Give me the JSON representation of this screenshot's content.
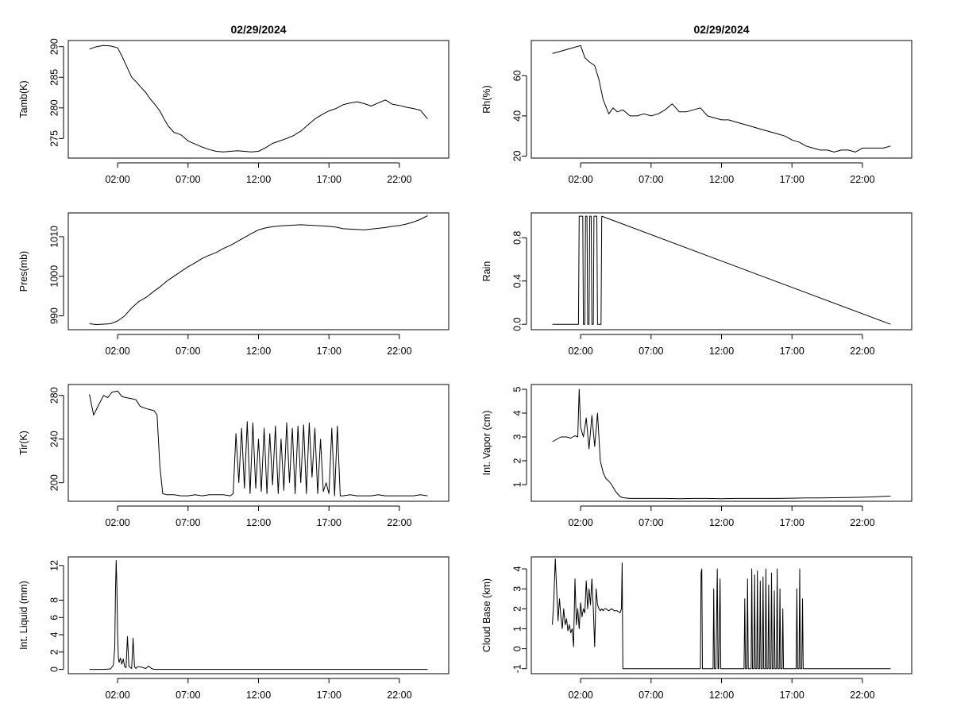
{
  "chart_data": [
    {
      "type": "line",
      "title": "02/29/2024",
      "ylabel": "Tamb(K)",
      "xlim": [
        -1.5,
        25.5
      ],
      "ylim": [
        271.8,
        291.0
      ],
      "yticks": [
        275,
        280,
        285,
        290
      ],
      "xticks": [
        2,
        7,
        12,
        17,
        22
      ],
      "xtick_labels": [
        "02:00",
        "07:00",
        "12:00",
        "17:00",
        "22:00"
      ],
      "series": [
        {
          "x": [
            0,
            0.5,
            1,
            1.5,
            2,
            2.3,
            2.6,
            3,
            3.3,
            3.6,
            4,
            4.3,
            4.6,
            5,
            5.3,
            5.6,
            6,
            6.5,
            7,
            7.5,
            8,
            8.5,
            9,
            9.5,
            10,
            10.5,
            11,
            11.5,
            12,
            12.5,
            13,
            13.5,
            14,
            14.5,
            15,
            15.5,
            16,
            16.5,
            17,
            17.5,
            18,
            18.5,
            19,
            19.5,
            20,
            20.5,
            21,
            21.5,
            22,
            22.5,
            23,
            23.5,
            24
          ],
          "y": [
            289.6,
            290.0,
            290.2,
            290.1,
            289.8,
            288.5,
            287.0,
            285.0,
            284.3,
            283.5,
            282.5,
            281.5,
            280.7,
            279.5,
            278.2,
            277.0,
            276.0,
            275.6,
            274.6,
            274.1,
            273.6,
            273.2,
            272.9,
            272.8,
            272.9,
            273.0,
            272.9,
            272.8,
            272.9,
            273.5,
            274.2,
            274.6,
            275.0,
            275.5,
            276.2,
            277.2,
            278.2,
            278.9,
            279.5,
            279.9,
            280.5,
            280.8,
            281.0,
            280.7,
            280.3,
            280.8,
            281.3,
            280.6,
            280.4,
            280.1,
            279.9,
            279.6,
            278.2
          ]
        }
      ]
    },
    {
      "type": "line",
      "title": "02/29/2024",
      "ylabel": "Rh(%)",
      "xlim": [
        -1.5,
        25.5
      ],
      "ylim": [
        19,
        77.5
      ],
      "yticks": [
        20,
        40,
        60
      ],
      "xticks": [
        2,
        7,
        12,
        17,
        22
      ],
      "xtick_labels": [
        "02:00",
        "07:00",
        "12:00",
        "17:00",
        "22:00"
      ],
      "series": [
        {
          "x": [
            0,
            0.5,
            1,
            1.5,
            2,
            2.3,
            2.6,
            3,
            3.3,
            3.6,
            4,
            4.3,
            4.6,
            5,
            5.5,
            6,
            6.5,
            7,
            7.5,
            8,
            8.5,
            9,
            9.5,
            10,
            10.5,
            11,
            11.5,
            12,
            12.5,
            13,
            13.5,
            14,
            14.5,
            15,
            15.5,
            16,
            16.5,
            17,
            17.5,
            18,
            18.5,
            19,
            19.5,
            20,
            20.5,
            21,
            21.5,
            22,
            22.5,
            23,
            23.5,
            24
          ],
          "y": [
            71,
            72,
            73,
            74,
            75,
            69,
            67,
            65,
            58,
            48,
            41,
            44,
            42,
            43,
            40,
            40,
            41,
            40,
            41,
            43,
            46,
            42,
            42,
            43,
            44,
            40,
            39,
            38,
            38,
            37,
            36,
            35,
            34,
            33,
            32,
            31,
            30,
            28,
            27,
            25,
            24,
            23,
            23,
            22,
            23,
            23,
            22,
            24,
            24,
            24,
            24,
            25
          ]
        }
      ]
    },
    {
      "type": "line",
      "title": "",
      "ylabel": "Pres(mb)",
      "xlim": [
        -1.5,
        25.5
      ],
      "ylim": [
        986.5,
        1016.0
      ],
      "yticks": [
        990,
        1000,
        1010
      ],
      "xticks": [
        2,
        7,
        12,
        17,
        22
      ],
      "xtick_labels": [
        "02:00",
        "07:00",
        "12:00",
        "17:00",
        "22:00"
      ],
      "series": [
        {
          "x": [
            0,
            0.5,
            1,
            1.5,
            2,
            2.5,
            3,
            3.5,
            4,
            4.5,
            5,
            5.5,
            6,
            6.5,
            7,
            7.5,
            8,
            8.5,
            9,
            9.5,
            10,
            10.5,
            11,
            11.5,
            12,
            12.5,
            13,
            13.5,
            14,
            14.5,
            15,
            15.5,
            16,
            16.5,
            17,
            17.5,
            18,
            18.5,
            19,
            19.5,
            20,
            20.5,
            21,
            21.5,
            22,
            22.5,
            23,
            23.5,
            24
          ],
          "y": [
            988.0,
            987.8,
            987.9,
            988.0,
            988.7,
            990.0,
            992.0,
            993.6,
            994.6,
            996.0,
            997.3,
            998.8,
            1000.0,
            1001.2,
            1002.4,
            1003.4,
            1004.5,
            1005.3,
            1006.0,
            1007.0,
            1007.8,
            1008.8,
            1009.8,
            1010.8,
            1011.7,
            1012.2,
            1012.5,
            1012.7,
            1012.8,
            1012.9,
            1013.0,
            1012.9,
            1012.8,
            1012.7,
            1012.6,
            1012.4,
            1012.0,
            1011.9,
            1011.8,
            1011.7,
            1011.9,
            1012.1,
            1012.3,
            1012.6,
            1012.8,
            1013.2,
            1013.7,
            1014.4,
            1015.3
          ]
        }
      ]
    },
    {
      "type": "line",
      "title": "",
      "ylabel": "Rain",
      "xlim": [
        -1.5,
        25.5
      ],
      "ylim": [
        -0.05,
        1.03
      ],
      "yticks": [
        0.0,
        0.4,
        0.8
      ],
      "xticks": [
        2,
        7,
        12,
        17,
        22
      ],
      "xtick_labels": [
        "02:00",
        "07:00",
        "12:00",
        "17:00",
        "22:00"
      ],
      "series": [
        {
          "x": [
            0,
            1.85,
            1.9,
            2.15,
            2.2,
            2.3,
            2.35,
            2.45,
            2.5,
            2.6,
            2.65,
            2.75,
            2.8,
            2.9,
            2.95,
            3.15,
            3.2,
            3.45,
            3.5,
            24
          ],
          "y": [
            0,
            0,
            1,
            1,
            0,
            0,
            1,
            1,
            0,
            0,
            1,
            1,
            0,
            0,
            1,
            1,
            0,
            0,
            1,
            0
          ]
        }
      ]
    },
    {
      "type": "line",
      "title": "",
      "ylabel": "Tir(K)",
      "xlim": [
        -1.5,
        25.5
      ],
      "ylim": [
        183,
        290
      ],
      "yticks": [
        200,
        240,
        280
      ],
      "xticks": [
        2,
        7,
        12,
        17,
        22
      ],
      "xtick_labels": [
        "02:00",
        "07:00",
        "12:00",
        "17:00",
        "22:00"
      ],
      "series": [
        {
          "x": [
            0,
            0.3,
            0.6,
            1,
            1.3,
            1.6,
            2,
            2.3,
            2.6,
            3,
            3.3,
            3.6,
            4,
            4.3,
            4.6,
            4.8,
            5.0,
            5.2,
            5.5,
            6,
            6.5,
            7,
            7.5,
            8,
            8.5,
            9,
            9.5,
            10,
            10.2,
            10.4,
            10.6,
            10.8,
            11.0,
            11.2,
            11.4,
            11.6,
            11.8,
            12.0,
            12.2,
            12.4,
            12.6,
            12.8,
            13.0,
            13.2,
            13.4,
            13.6,
            13.8,
            14.0,
            14.2,
            14.4,
            14.6,
            14.8,
            15.0,
            15.2,
            15.4,
            15.6,
            15.8,
            16.0,
            16.2,
            16.4,
            16.6,
            16.8,
            17.0,
            17.2,
            17.4,
            17.6,
            17.8,
            18.0,
            18.5,
            19,
            19.5,
            20,
            20.5,
            21,
            21.5,
            22,
            22.5,
            23,
            23.5,
            24
          ],
          "y": [
            281,
            262,
            270,
            280,
            278,
            283,
            284,
            279,
            278,
            277,
            276,
            270,
            268,
            267,
            266,
            262,
            215,
            190,
            189,
            189,
            188,
            188,
            189,
            188,
            189,
            189,
            189,
            188,
            190,
            245,
            200,
            250,
            195,
            256,
            190,
            255,
            195,
            240,
            192,
            250,
            190,
            245,
            198,
            252,
            190,
            240,
            193,
            255,
            200,
            250,
            190,
            252,
            200,
            253,
            190,
            255,
            205,
            250,
            190,
            240,
            192,
            200,
            190,
            250,
            188,
            252,
            188,
            188,
            189,
            188,
            188,
            188,
            189,
            188,
            188,
            188,
            188,
            188,
            189,
            188
          ]
        }
      ]
    },
    {
      "type": "line",
      "title": "",
      "ylabel": "Int. Vapor (cm)",
      "xlim": [
        -1.5,
        25.5
      ],
      "ylim": [
        0.3,
        5.2
      ],
      "yticks": [
        1,
        2,
        3,
        4,
        5
      ],
      "xticks": [
        2,
        7,
        12,
        17,
        22
      ],
      "xtick_labels": [
        "02:00",
        "07:00",
        "12:00",
        "17:00",
        "22:00"
      ],
      "series": [
        {
          "x": [
            0,
            0.3,
            0.6,
            1,
            1.3,
            1.6,
            1.8,
            1.9,
            2.0,
            2.2,
            2.4,
            2.6,
            2.8,
            3.0,
            3.2,
            3.4,
            3.6,
            3.8,
            4.0,
            4.2,
            4.5,
            4.8,
            5,
            5.5,
            6,
            7,
            8,
            9,
            10,
            11,
            12,
            13,
            14,
            15,
            16,
            17,
            18,
            19,
            20,
            21,
            22,
            23,
            24
          ],
          "y": [
            2.8,
            2.9,
            3.0,
            3.0,
            2.95,
            3.05,
            3.0,
            5.0,
            3.4,
            3.0,
            3.8,
            2.5,
            3.9,
            2.6,
            4.0,
            2.0,
            1.5,
            1.25,
            1.15,
            1.0,
            0.7,
            0.5,
            0.45,
            0.42,
            0.42,
            0.42,
            0.42,
            0.41,
            0.42,
            0.42,
            0.41,
            0.42,
            0.42,
            0.42,
            0.42,
            0.43,
            0.44,
            0.44,
            0.45,
            0.46,
            0.47,
            0.49,
            0.52
          ]
        }
      ]
    },
    {
      "type": "line",
      "title": "",
      "ylabel": "Int. Liquid (mm)",
      "xlim": [
        -1.5,
        25.5
      ],
      "ylim": [
        -0.5,
        13.0
      ],
      "yticks": [
        0,
        2,
        4,
        6,
        8,
        12
      ],
      "xticks": [
        2,
        7,
        12,
        17,
        22
      ],
      "xtick_labels": [
        "02:00",
        "07:00",
        "12:00",
        "17:00",
        "22:00"
      ],
      "series": [
        {
          "x": [
            0,
            1,
            1.5,
            1.7,
            1.8,
            1.85,
            1.9,
            1.95,
            2.0,
            2.05,
            2.1,
            2.2,
            2.3,
            2.4,
            2.5,
            2.6,
            2.7,
            2.8,
            2.9,
            3.0,
            3.1,
            3.2,
            3.3,
            3.4,
            3.6,
            3.8,
            4.0,
            4.2,
            4.4,
            4.6,
            5,
            24
          ],
          "y": [
            0,
            0,
            0.05,
            0.5,
            2.5,
            9.0,
            12.6,
            9.5,
            4.0,
            1.5,
            0.8,
            1.3,
            0.6,
            1.2,
            0.3,
            0.2,
            3.8,
            0.4,
            0.2,
            0.1,
            3.6,
            0.3,
            0.1,
            0.3,
            0.3,
            0.2,
            0.1,
            0.4,
            0.1,
            0,
            0,
            0
          ]
        }
      ]
    },
    {
      "type": "line",
      "title": "",
      "ylabel": "Cloud Base (km)",
      "xlim": [
        -1.5,
        25.5
      ],
      "ylim": [
        -1.25,
        4.6
      ],
      "yticks": [
        -1,
        0,
        1,
        2,
        3,
        4
      ],
      "xticks": [
        2,
        7,
        12,
        17,
        22
      ],
      "xtick_labels": [
        "02:00",
        "07:00",
        "12:00",
        "17:00",
        "22:00"
      ],
      "series": [
        {
          "x": [
            0,
            0.1,
            0.2,
            0.3,
            0.4,
            0.5,
            0.6,
            0.7,
            0.8,
            0.9,
            1.0,
            1.1,
            1.2,
            1.3,
            1.4,
            1.5,
            1.6,
            1.7,
            1.8,
            1.9,
            2.0,
            2.1,
            2.2,
            2.3,
            2.4,
            2.5,
            2.6,
            2.7,
            2.8,
            2.9,
            3.0,
            3.1,
            3.2,
            3.3,
            3.4,
            3.5,
            3.6,
            3.7,
            3.8,
            4.0,
            4.2,
            4.4,
            4.6,
            4.8,
            4.9,
            4.95,
            5.0,
            10.5,
            10.55,
            10.6,
            10.65,
            10.7,
            11.4,
            11.45,
            11.5,
            11.6,
            11.7,
            11.75,
            11.8,
            11.9,
            11.95,
            12.0,
            13.6,
            13.65,
            13.7,
            13.8,
            13.85,
            13.9,
            14.1,
            14.15,
            14.2,
            14.3,
            14.35,
            14.4,
            14.5,
            14.55,
            14.6,
            14.7,
            14.75,
            14.8,
            14.9,
            14.95,
            15.0,
            15.1,
            15.15,
            15.2,
            15.3,
            15.35,
            15.4,
            15.5,
            15.55,
            15.6,
            15.7,
            15.75,
            15.8,
            15.9,
            15.95,
            16.0,
            16.1,
            16.15,
            16.2,
            16.3,
            16.35,
            16.4,
            17.3,
            17.35,
            17.4,
            17.5,
            17.55,
            17.6,
            17.7,
            17.75,
            17.8,
            24
          ],
          "y": [
            1.2,
            2.5,
            4.5,
            3.0,
            1.4,
            2.5,
            1.6,
            1.0,
            2.0,
            1.2,
            1.5,
            0.9,
            1.2,
            0.8,
            1.0,
            0.1,
            3.5,
            1.2,
            2.0,
            1.0,
            2.3,
            1.6,
            2.0,
            1.8,
            3.4,
            2.0,
            3.0,
            2.2,
            3.5,
            2.0,
            0.1,
            3.0,
            2.2,
            2.0,
            1.9,
            2.0,
            1.9,
            2.0,
            2.0,
            1.9,
            2.0,
            1.9,
            1.9,
            1.8,
            2.0,
            4.3,
            -1,
            -1,
            3.8,
            4.0,
            -1,
            -1,
            -1,
            3.0,
            -1,
            -1,
            4.0,
            -1,
            -1,
            3.5,
            -1,
            -1,
            -1,
            2.5,
            -1,
            -1,
            3.5,
            -1,
            -1,
            4.0,
            -1,
            -1,
            3.7,
            -1,
            -1,
            3.9,
            -1,
            -1,
            3.4,
            -1,
            -1,
            3.6,
            -1,
            -1,
            4.0,
            -1,
            -1,
            3.2,
            -1,
            -1,
            3.8,
            -1,
            -1,
            2.9,
            -1,
            -1,
            4.0,
            -1,
            -1,
            3.0,
            -1,
            -1,
            2.0,
            -1,
            -1,
            3.0,
            -1,
            -1,
            4.0,
            -1,
            -1,
            2.5,
            -1,
            -1
          ]
        }
      ]
    }
  ]
}
